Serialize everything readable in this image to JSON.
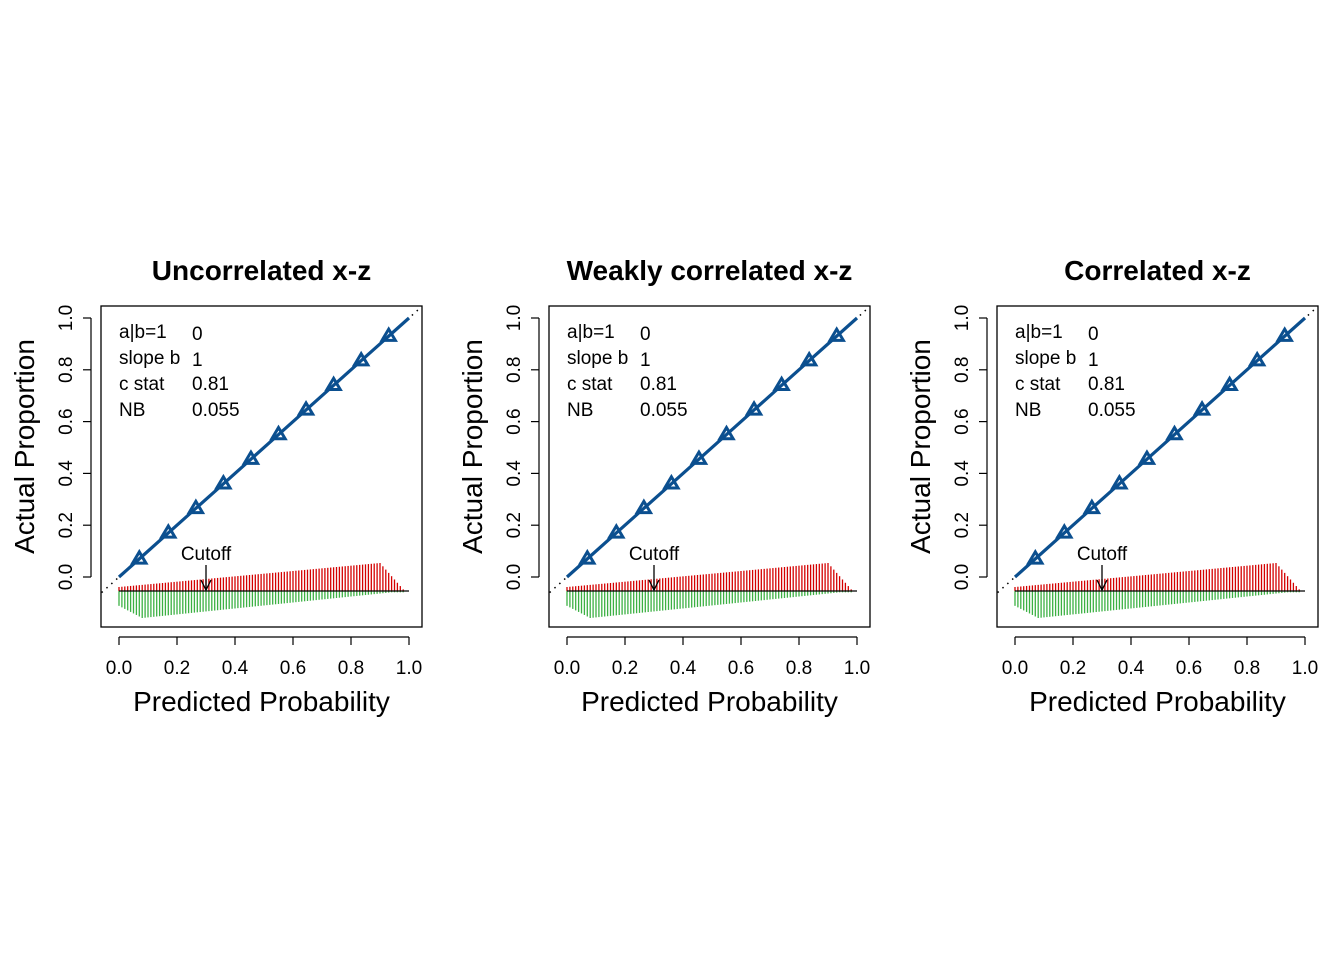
{
  "colors": {
    "calibration": "#0b4f8f",
    "positive_hist": "#d40000",
    "negative_hist": "#3cb043",
    "axis": "#000000"
  },
  "chart_data": [
    {
      "type": "line",
      "title": "Uncorrelated x-z",
      "xlabel": "Predicted Probability",
      "ylabel": "Actual Proportion",
      "xlim": [
        0.0,
        1.0
      ],
      "ylim": [
        -0.13,
        1.02
      ],
      "xticks": [
        "0.0",
        "0.2",
        "0.4",
        "0.6",
        "0.8",
        "1.0"
      ],
      "yticks": [
        "0.0",
        "0.2",
        "0.4",
        "0.6",
        "0.8",
        "1.0"
      ],
      "grid": false,
      "series": [
        {
          "x": [
            0.07,
            0.17,
            0.265,
            0.36,
            0.455,
            0.55,
            0.645,
            0.74,
            0.835,
            0.93
          ],
          "y": [
            0.07,
            0.17,
            0.265,
            0.36,
            0.455,
            0.55,
            0.645,
            0.74,
            0.835,
            0.93
          ]
        }
      ],
      "stats": [
        {
          "label": "a|b=1",
          "value": "0"
        },
        {
          "label": "slope b",
          "value": "1"
        },
        {
          "label": "c stat",
          "value": "0.81"
        },
        {
          "label": "NB",
          "value": "0.055"
        }
      ],
      "cutoff": {
        "label": "Cutoff",
        "x": 0.3
      }
    },
    {
      "type": "line",
      "title": "Weakly correlated x-z",
      "xlabel": "Predicted Probability",
      "ylabel": "Actual Proportion",
      "xlim": [
        0.0,
        1.0
      ],
      "ylim": [
        -0.13,
        1.02
      ],
      "xticks": [
        "0.0",
        "0.2",
        "0.4",
        "0.6",
        "0.8",
        "1.0"
      ],
      "yticks": [
        "0.0",
        "0.2",
        "0.4",
        "0.6",
        "0.8",
        "1.0"
      ],
      "grid": false,
      "series": [
        {
          "x": [
            0.07,
            0.17,
            0.265,
            0.36,
            0.455,
            0.55,
            0.645,
            0.74,
            0.835,
            0.93
          ],
          "y": [
            0.07,
            0.17,
            0.265,
            0.36,
            0.455,
            0.55,
            0.645,
            0.74,
            0.835,
            0.93
          ]
        }
      ],
      "stats": [
        {
          "label": "a|b=1",
          "value": "0"
        },
        {
          "label": "slope b",
          "value": "1"
        },
        {
          "label": "c stat",
          "value": "0.81"
        },
        {
          "label": "NB",
          "value": "0.055"
        }
      ],
      "cutoff": {
        "label": "Cutoff",
        "x": 0.3
      }
    },
    {
      "type": "line",
      "title": "Correlated x-z",
      "xlabel": "Predicted Probability",
      "ylabel": "Actual Proportion",
      "xlim": [
        0.0,
        1.0
      ],
      "ylim": [
        -0.13,
        1.02
      ],
      "xticks": [
        "0.0",
        "0.2",
        "0.4",
        "0.6",
        "0.8",
        "1.0"
      ],
      "yticks": [
        "0.0",
        "0.2",
        "0.4",
        "0.6",
        "0.8",
        "1.0"
      ],
      "grid": false,
      "series": [
        {
          "x": [
            0.07,
            0.17,
            0.265,
            0.36,
            0.455,
            0.55,
            0.645,
            0.74,
            0.835,
            0.93
          ],
          "y": [
            0.07,
            0.17,
            0.265,
            0.36,
            0.455,
            0.55,
            0.645,
            0.74,
            0.835,
            0.93
          ]
        }
      ],
      "stats": [
        {
          "label": "a|b=1",
          "value": "0"
        },
        {
          "label": "slope b",
          "value": "1"
        },
        {
          "label": "c stat",
          "value": "0.81"
        },
        {
          "label": "NB",
          "value": "0.055"
        }
      ],
      "cutoff": {
        "label": "Cutoff",
        "x": 0.3
      }
    }
  ]
}
